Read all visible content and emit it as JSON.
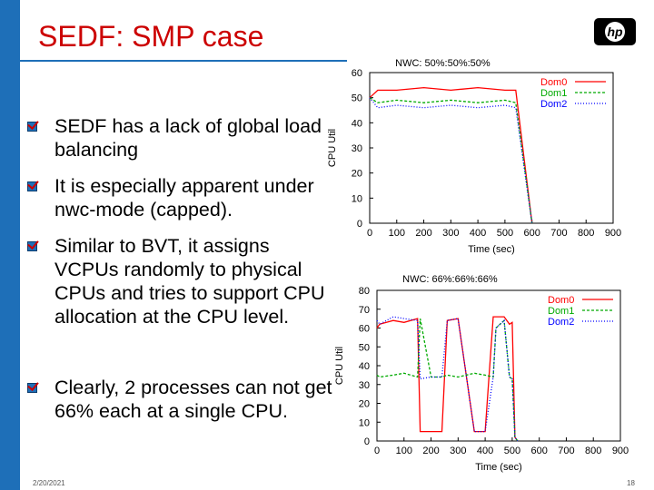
{
  "slide": {
    "title": "SEDF: SMP case",
    "date": "2/20/2021",
    "page": "18",
    "accent_color": "#1e6fb8",
    "title_color": "#cc0000",
    "logo_text": "hp"
  },
  "bullets": [
    {
      "text": "SEDF has a lack of global load balancing"
    },
    {
      "text": "It is especially apparent under nwc-mode (capped)."
    },
    {
      "text": "Similar to BVT, it assigns VCPUs randomly to physical CPUs and tries to support CPU allocation at the CPU level."
    },
    {
      "text": "Clearly, 2 processes can not get 66% each at a single CPU."
    }
  ],
  "chart_data": [
    {
      "type": "line",
      "title": "NWC: 50%:50%:50%",
      "xlabel": "Time (sec)",
      "ylabel": "CPU Util",
      "xlim": [
        0,
        900
      ],
      "ylim": [
        0,
        60
      ],
      "xticks": [
        0,
        100,
        200,
        300,
        400,
        500,
        600,
        700,
        800,
        900
      ],
      "yticks": [
        0,
        10,
        20,
        30,
        40,
        50,
        60
      ],
      "grid": false,
      "legend_position": "top-right",
      "series": [
        {
          "name": "Dom0",
          "color": "#ff0000",
          "dash": "none",
          "x": [
            0,
            30,
            100,
            200,
            300,
            400,
            500,
            540,
            600
          ],
          "y": [
            50,
            53,
            53,
            54,
            53,
            54,
            53,
            53,
            0
          ]
        },
        {
          "name": "Dom1",
          "color": "#00aa00",
          "dash": "3,2",
          "x": [
            0,
            30,
            100,
            200,
            300,
            400,
            500,
            540,
            600
          ],
          "y": [
            50,
            48,
            49,
            48,
            49,
            48,
            49,
            48,
            0
          ]
        },
        {
          "name": "Dom2",
          "color": "#0000ff",
          "dash": "1,2",
          "x": [
            0,
            30,
            100,
            200,
            300,
            400,
            500,
            540,
            600
          ],
          "y": [
            50,
            46,
            47,
            46,
            47,
            46,
            47,
            46,
            0
          ]
        }
      ]
    },
    {
      "type": "line",
      "title": "NWC: 66%:66%:66%",
      "xlabel": "Time (sec)",
      "ylabel": "CPU Util",
      "xlim": [
        0,
        900
      ],
      "ylim": [
        0,
        80
      ],
      "xticks": [
        0,
        100,
        200,
        300,
        400,
        500,
        600,
        700,
        800,
        900
      ],
      "yticks": [
        0,
        10,
        20,
        30,
        40,
        50,
        60,
        70,
        80
      ],
      "grid": false,
      "legend_position": "top-right",
      "series": [
        {
          "name": "Dom0",
          "color": "#ff0000",
          "dash": "none",
          "x": [
            0,
            10,
            60,
            100,
            150,
            160,
            200,
            240,
            260,
            300,
            360,
            400,
            430,
            440,
            470,
            490,
            500,
            510,
            520
          ],
          "y": [
            60,
            62,
            64,
            63,
            65,
            5,
            5,
            5,
            64,
            65,
            5,
            5,
            66,
            66,
            66,
            62,
            63,
            2,
            0
          ]
        },
        {
          "name": "Dom1",
          "color": "#00aa00",
          "dash": "3,2",
          "x": [
            0,
            10,
            60,
            100,
            150,
            160,
            200,
            240,
            260,
            300,
            360,
            400,
            430,
            440,
            470,
            490,
            500,
            510,
            520
          ],
          "y": [
            35,
            34,
            35,
            36,
            34,
            65,
            34,
            34,
            35,
            34,
            36,
            35,
            34,
            60,
            64,
            34,
            33,
            2,
            0
          ]
        },
        {
          "name": "Dom2",
          "color": "#0000ff",
          "dash": "1,2",
          "x": [
            0,
            10,
            60,
            100,
            150,
            160,
            200,
            240,
            260,
            300,
            360,
            400,
            430,
            440,
            470,
            490,
            500,
            510,
            520
          ],
          "y": [
            64,
            62,
            66,
            65,
            64,
            33,
            34,
            34,
            64,
            65,
            5,
            5,
            34,
            60,
            64,
            34,
            33,
            2,
            0
          ]
        }
      ]
    }
  ]
}
